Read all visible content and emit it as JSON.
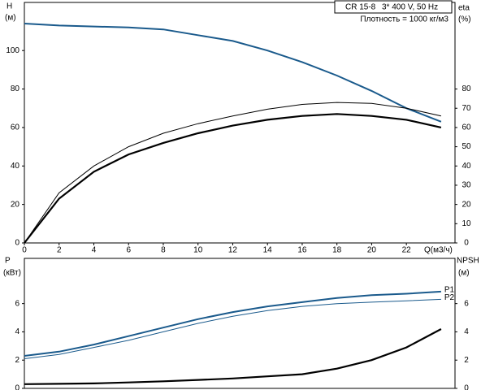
{
  "chart_data": [
    {
      "type": "line",
      "model": "CR 15-8",
      "supply": "3* 400 V, 50 Hz",
      "density": "Плотность = 1000 кг/м3",
      "y_label": "H",
      "y_unit": "(м)",
      "y2_label": "eta",
      "y2_unit": "(%)",
      "x_label": "Q(м3/ч)",
      "x": [
        0,
        2,
        4,
        6,
        8,
        10,
        12,
        14,
        16,
        18,
        20,
        22,
        24
      ],
      "xlim": [
        0,
        24.8
      ],
      "xticks": [
        0,
        2,
        4,
        6,
        8,
        10,
        12,
        14,
        16,
        18,
        20,
        22
      ],
      "ylim": [
        0,
        125
      ],
      "yticks": [
        0,
        20,
        40,
        60,
        80,
        100
      ],
      "y2lim": [
        0,
        125
      ],
      "y2ticks": [
        0,
        10,
        20,
        30,
        40,
        50,
        60,
        70,
        80
      ],
      "series": [
        {
          "color": "#1a5a8c",
          "width": 2,
          "values": [
            114,
            113,
            112.5,
            112,
            111,
            108,
            105,
            100,
            94,
            87,
            79,
            70,
            63
          ]
        },
        {
          "color": "#000000",
          "width": 1,
          "axis": "y2",
          "values": [
            0,
            26,
            40,
            50,
            57,
            62,
            66,
            69.5,
            72,
            73,
            72.5,
            70,
            66
          ]
        },
        {
          "color": "#000000",
          "width": 2.2,
          "axis": "y2",
          "values": [
            0,
            23,
            37,
            46,
            52,
            57,
            61,
            64,
            66,
            67,
            66,
            64,
            60
          ]
        }
      ]
    },
    {
      "type": "line",
      "y_label": "P",
      "y_unit": "(кВт)",
      "y2_label": "NPSH",
      "y2_unit": "(м)",
      "x": [
        0,
        2,
        4,
        6,
        8,
        10,
        12,
        14,
        16,
        18,
        20,
        22,
        24
      ],
      "xlim": [
        0,
        24.8
      ],
      "ylim": [
        0,
        9.2
      ],
      "yticks": [
        0,
        2,
        4,
        6
      ],
      "y2lim": [
        0,
        9.2
      ],
      "y2ticks": [
        0,
        2,
        4,
        6
      ],
      "series": [
        {
          "name": "P1",
          "color": "#1a5a8c",
          "width": 2,
          "values": [
            2.3,
            2.6,
            3.1,
            3.7,
            4.3,
            4.9,
            5.4,
            5.8,
            6.1,
            6.4,
            6.6,
            6.7,
            6.85
          ]
        },
        {
          "name": "P2",
          "color": "#1a5a8c",
          "width": 1,
          "values": [
            2.1,
            2.4,
            2.9,
            3.4,
            4.0,
            4.6,
            5.1,
            5.5,
            5.8,
            6.0,
            6.1,
            6.2,
            6.3
          ]
        },
        {
          "color": "#000000",
          "width": 2.2,
          "axis": "y2",
          "values": [
            0.3,
            0.32,
            0.35,
            0.42,
            0.5,
            0.6,
            0.7,
            0.85,
            1.0,
            1.4,
            2.0,
            2.9,
            4.2
          ]
        }
      ]
    }
  ]
}
